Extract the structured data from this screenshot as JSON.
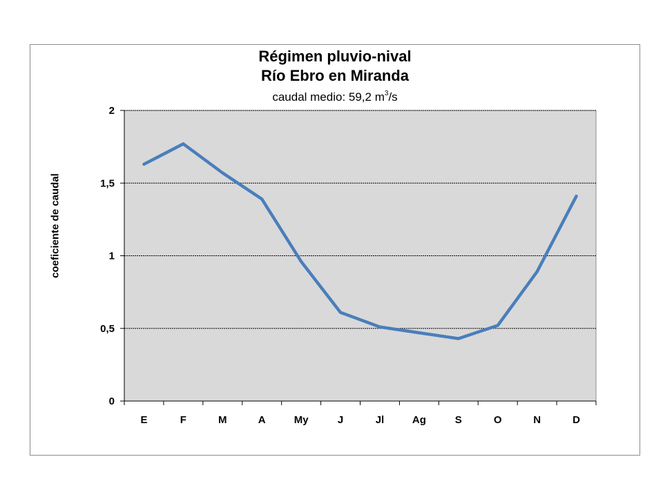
{
  "chart_data": {
    "type": "line",
    "title": "Régimen pluvio-nival",
    "title_line2": "Río Ebro en Miranda",
    "subtitle": {
      "prefix": "caudal medio:  59,2 m",
      "superscript": "3",
      "suffix": "/s"
    },
    "xlabel": "",
    "ylabel": "coeficiente de caudal",
    "categories": [
      "E",
      "F",
      "M",
      "A",
      "My",
      "J",
      "Jl",
      "Ag",
      "S",
      "O",
      "N",
      "D"
    ],
    "series": [
      {
        "values": [
          1.63,
          1.77,
          1.57,
          1.39,
          0.96,
          0.61,
          0.51,
          0.47,
          0.43,
          0.52,
          0.89,
          1.41
        ],
        "color": "#4a7ebb"
      }
    ],
    "ylim": [
      0,
      2
    ],
    "yticks": [
      {
        "value": 0,
        "label": "0"
      },
      {
        "value": 0.5,
        "label": "0,5"
      },
      {
        "value": 1,
        "label": "1"
      },
      {
        "value": 1.5,
        "label": "1,5"
      },
      {
        "value": 2,
        "label": "2"
      }
    ],
    "grid": true,
    "plot_background": "#d9d9d9",
    "legend": "none"
  }
}
